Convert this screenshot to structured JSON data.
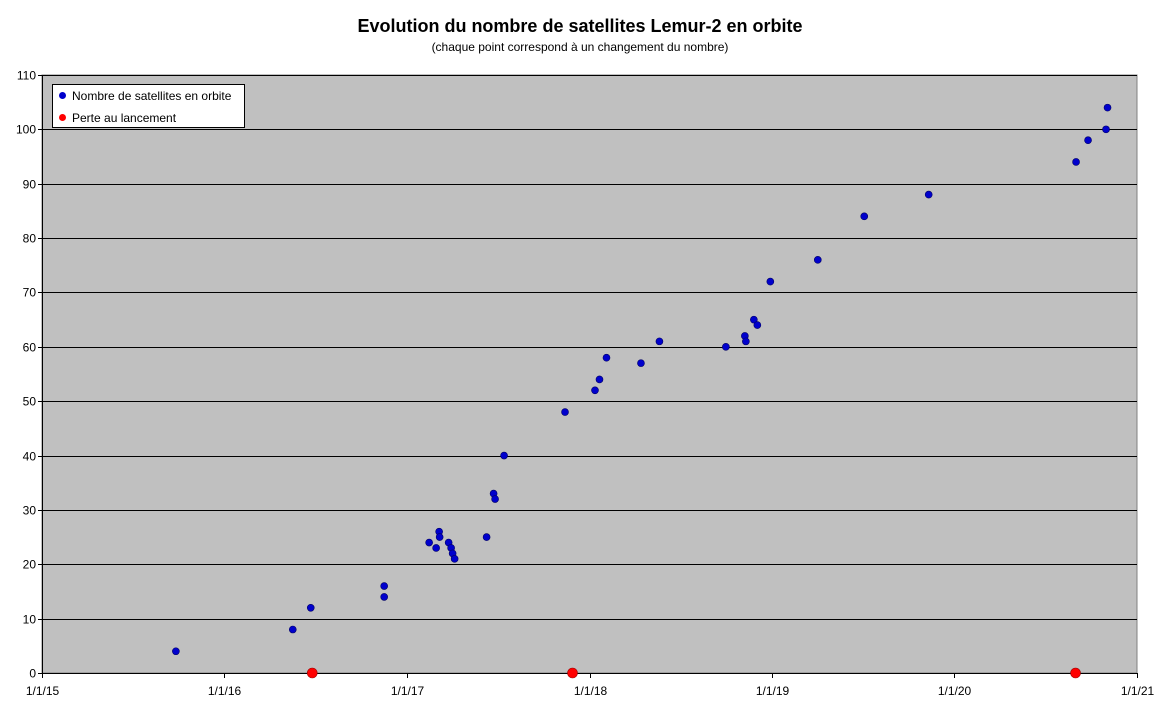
{
  "chart_data": {
    "type": "scatter",
    "title": "Evolution du nombre de satellites Lemur-2 en orbite",
    "subtitle": "(chaque point correspond à un changement du nombre)",
    "xlabel": "",
    "ylabel": "",
    "xlim": [
      "2015-01-01",
      "2021-01-01"
    ],
    "ylim": [
      0,
      110
    ],
    "x_tick_labels": [
      "1/1/15",
      "1/1/16",
      "1/1/17",
      "1/1/18",
      "1/1/19",
      "1/1/20",
      "1/1/21"
    ],
    "x_tick_dates": [
      "2015-01-01",
      "2016-01-01",
      "2017-01-01",
      "2018-01-01",
      "2019-01-01",
      "2020-01-01",
      "2021-01-01"
    ],
    "y_ticks": [
      0,
      10,
      20,
      30,
      40,
      50,
      60,
      70,
      80,
      90,
      100,
      110
    ],
    "grid": "horizontal",
    "legend_position": "top-left",
    "series": [
      {
        "name": "Nombre de satellites en orbite",
        "color": "#0000cc",
        "points": [
          {
            "x": "2015-09-26",
            "y": 4
          },
          {
            "x": "2016-05-17",
            "y": 8
          },
          {
            "x": "2016-06-22",
            "y": 12
          },
          {
            "x": "2016-11-16",
            "y": 14
          },
          {
            "x": "2016-11-16",
            "y": 16
          },
          {
            "x": "2017-02-14",
            "y": 24
          },
          {
            "x": "2017-02-28",
            "y": 23
          },
          {
            "x": "2017-03-06",
            "y": 26
          },
          {
            "x": "2017-03-07",
            "y": 25
          },
          {
            "x": "2017-03-25",
            "y": 24
          },
          {
            "x": "2017-03-30",
            "y": 23
          },
          {
            "x": "2017-04-02",
            "y": 22
          },
          {
            "x": "2017-04-06",
            "y": 21
          },
          {
            "x": "2017-06-09",
            "y": 25
          },
          {
            "x": "2017-06-23",
            "y": 33
          },
          {
            "x": "2017-06-26",
            "y": 32
          },
          {
            "x": "2017-07-14",
            "y": 40
          },
          {
            "x": "2017-11-13",
            "y": 48
          },
          {
            "x": "2018-01-12",
            "y": 52
          },
          {
            "x": "2018-01-21",
            "y": 54
          },
          {
            "x": "2018-02-04",
            "y": 58
          },
          {
            "x": "2018-04-14",
            "y": 57
          },
          {
            "x": "2018-05-21",
            "y": 61
          },
          {
            "x": "2018-10-01",
            "y": 60
          },
          {
            "x": "2018-11-08",
            "y": 62
          },
          {
            "x": "2018-11-10",
            "y": 61
          },
          {
            "x": "2018-11-26",
            "y": 65
          },
          {
            "x": "2018-12-03",
            "y": 64
          },
          {
            "x": "2018-12-29",
            "y": 72
          },
          {
            "x": "2019-04-03",
            "y": 76
          },
          {
            "x": "2019-07-05",
            "y": 84
          },
          {
            "x": "2019-11-11",
            "y": 88
          },
          {
            "x": "2020-09-01",
            "y": 94
          },
          {
            "x": "2020-09-25",
            "y": 98
          },
          {
            "x": "2020-10-31",
            "y": 100
          },
          {
            "x": "2020-11-03",
            "y": 104
          }
        ]
      },
      {
        "name": "Perte au lancement",
        "color": "#ff0000",
        "points": [
          {
            "x": "2016-06-25",
            "y": 0
          },
          {
            "x": "2017-11-28",
            "y": 0
          },
          {
            "x": "2020-08-31",
            "y": 0
          }
        ]
      }
    ]
  }
}
